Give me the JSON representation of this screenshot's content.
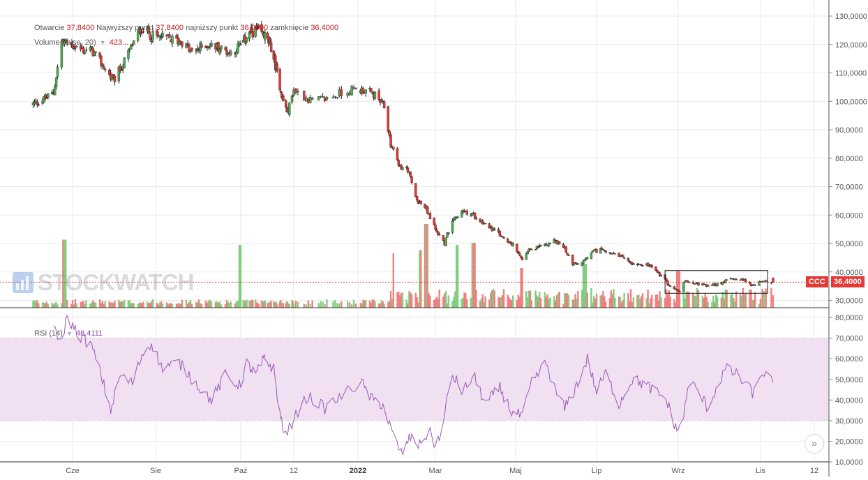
{
  "legend": {
    "ohlc": {
      "open_label": "Otwarcie",
      "open": "37,8400",
      "high_label": "Najwyższy punkt",
      "high": "37,8400",
      "low_label": "najniższy punkt",
      "low": "36,0000",
      "close_label": "zamknięcie",
      "close": "36,4000"
    },
    "volume": {
      "label": "Volume (false, 20)",
      "value": "423..."
    },
    "rsi": {
      "label": "RSI (14)",
      "value": "48,4111"
    }
  },
  "watermark": "STOCKWATCH",
  "price_tag": {
    "ticker": "CCC",
    "price": "36,4000"
  },
  "colors": {
    "up": "#4caf50",
    "down": "#e53935",
    "wick": "#222222",
    "volume_up": "#7fcf7f",
    "volume_down": "#f08080",
    "rsi_line": "#9b59b6",
    "rsi_band": "#f0e0f2",
    "price_line": "#e53935",
    "grid": "#e9e9e9",
    "axis_text": "#555555"
  },
  "chart_data": [
    {
      "type": "candlestick",
      "title": "",
      "x_tick_labels": [
        "Cze",
        "Sie",
        "Paź",
        "12",
        "2022",
        "Mar",
        "Maj",
        "Lip",
        "Wrz",
        "Lis",
        "12"
      ],
      "y_tick_labels": [
        "30,0000",
        "40,0000",
        "50,0000",
        "60,0000",
        "70,0000",
        "80,0000",
        "90,0000",
        "100,0000",
        "110,0000",
        "120,0000",
        "130,0000"
      ],
      "ylim": [
        27,
        134
      ],
      "grid": true,
      "last_price": 36.4,
      "price_line": 36.4,
      "highlight_box": {
        "x_range": [
          "2022-08-22",
          "2022-11-05"
        ],
        "y_range": [
          32.5,
          40.5
        ]
      },
      "close_anchors": [
        [
          "2021-05-03",
          99
        ],
        [
          "2021-05-12",
          101
        ],
        [
          "2021-05-18",
          103
        ],
        [
          "2021-05-24",
          121
        ],
        [
          "2021-05-31",
          120
        ],
        [
          "2021-06-08",
          118
        ],
        [
          "2021-06-15",
          118
        ],
        [
          "2021-06-24",
          112
        ],
        [
          "2021-07-01",
          107
        ],
        [
          "2021-07-08",
          113
        ],
        [
          "2021-07-15",
          120
        ],
        [
          "2021-07-22",
          126
        ],
        [
          "2021-07-29",
          123
        ],
        [
          "2021-08-10",
          122
        ],
        [
          "2021-08-20",
          121
        ],
        [
          "2021-08-27",
          117
        ],
        [
          "2021-09-06",
          120
        ],
        [
          "2021-09-15",
          119
        ],
        [
          "2021-09-24",
          117
        ],
        [
          "2021-10-04",
          121
        ],
        [
          "2021-10-12",
          124
        ],
        [
          "2021-10-20",
          125
        ],
        [
          "2021-10-29",
          123
        ],
        [
          "2021-11-05",
          119
        ],
        [
          "2021-11-12",
          110
        ],
        [
          "2021-11-18",
          101
        ],
        [
          "2021-11-24",
          96
        ],
        [
          "2021-12-01",
          104
        ],
        [
          "2021-12-10",
          100
        ],
        [
          "2021-12-17",
          101
        ],
        [
          "2021-12-28",
          104
        ],
        [
          "2022-01-05",
          104
        ],
        [
          "2022-01-14",
          102
        ],
        [
          "2022-01-21",
          98
        ],
        [
          "2022-01-26",
          85
        ],
        [
          "2022-02-01",
          77
        ],
        [
          "2022-02-08",
          76
        ],
        [
          "2022-02-14",
          66
        ],
        [
          "2022-02-22",
          62
        ],
        [
          "2022-03-01",
          55
        ],
        [
          "2022-03-08",
          50
        ],
        [
          "2022-03-14",
          59
        ],
        [
          "2022-03-22",
          61
        ],
        [
          "2022-03-30",
          60
        ],
        [
          "2022-04-08",
          57
        ],
        [
          "2022-04-19",
          53
        ],
        [
          "2022-04-28",
          50
        ],
        [
          "2022-05-06",
          44
        ],
        [
          "2022-05-12",
          48
        ],
        [
          "2022-05-20",
          49
        ],
        [
          "2022-05-30",
          51
        ],
        [
          "2022-06-06",
          49
        ],
        [
          "2022-06-13",
          43
        ],
        [
          "2022-06-20",
          43
        ],
        [
          "2022-06-28",
          47
        ],
        [
          "2022-07-06",
          48
        ],
        [
          "2022-07-14",
          46
        ],
        [
          "2022-07-21",
          45
        ],
        [
          "2022-07-28",
          43
        ],
        [
          "2022-08-03",
          43
        ],
        [
          "2022-08-11",
          42
        ],
        [
          "2022-08-18",
          39
        ],
        [
          "2022-08-26",
          35
        ],
        [
          "2022-09-01",
          33
        ],
        [
          "2022-09-07",
          37
        ],
        [
          "2022-09-15",
          36
        ],
        [
          "2022-09-22",
          35
        ],
        [
          "2022-10-03",
          36
        ],
        [
          "2022-10-11",
          38
        ],
        [
          "2022-10-20",
          37
        ],
        [
          "2022-10-27",
          35
        ],
        [
          "2022-11-03",
          37
        ],
        [
          "2022-11-08",
          36.4
        ]
      ]
    },
    {
      "type": "bar",
      "title": "",
      "series_name": "Volume (false, 20)",
      "spikes": [
        [
          "2021-05-26",
          0.65
        ],
        [
          "2021-10-01",
          0.6
        ],
        [
          "2022-01-29",
          0.52
        ],
        [
          "2022-02-22",
          0.8
        ],
        [
          "2022-02-18",
          0.55
        ],
        [
          "2022-03-18",
          0.6
        ],
        [
          "2022-03-30",
          0.62
        ],
        [
          "2022-05-06",
          0.38
        ],
        [
          "2022-06-22",
          0.42
        ],
        [
          "2022-09-01",
          0.35
        ]
      ]
    },
    {
      "type": "line",
      "title": "",
      "series_name": "RSI (14)",
      "y_tick_labels": [
        "10,0000",
        "20,0000",
        "30,0000",
        "40,0000",
        "50,0000",
        "60,0000",
        "70,0000",
        "80,0000"
      ],
      "ylim": [
        10,
        82
      ],
      "band": [
        30,
        70
      ],
      "last_value": 48.4111,
      "anchors": [
        [
          "2021-05-18",
          78
        ],
        [
          "2021-05-22",
          64
        ],
        [
          "2021-05-28",
          80
        ],
        [
          "2021-06-05",
          72
        ],
        [
          "2021-06-15",
          66
        ],
        [
          "2021-06-22",
          52
        ],
        [
          "2021-06-29",
          35
        ],
        [
          "2021-07-06",
          52
        ],
        [
          "2021-07-15",
          48
        ],
        [
          "2021-07-22",
          62
        ],
        [
          "2021-07-29",
          68
        ],
        [
          "2021-08-05",
          56
        ],
        [
          "2021-08-18",
          58
        ],
        [
          "2021-08-30",
          48
        ],
        [
          "2021-09-10",
          40
        ],
        [
          "2021-09-20",
          52
        ],
        [
          "2021-09-30",
          47
        ],
        [
          "2021-10-08",
          58
        ],
        [
          "2021-10-18",
          52
        ],
        [
          "2021-10-28",
          60
        ],
        [
          "2021-11-08",
          55
        ],
        [
          "2021-11-15",
          33
        ],
        [
          "2021-11-22",
          22
        ],
        [
          "2021-11-30",
          30
        ],
        [
          "2021-12-08",
          42
        ],
        [
          "2021-12-16",
          36
        ],
        [
          "2021-12-24",
          42
        ],
        [
          "2022-01-03",
          49
        ],
        [
          "2022-01-12",
          40
        ],
        [
          "2022-01-20",
          38
        ],
        [
          "2022-01-27",
          24
        ],
        [
          "2022-02-03",
          14
        ],
        [
          "2022-02-10",
          22
        ],
        [
          "2022-02-17",
          18
        ],
        [
          "2022-02-24",
          25
        ],
        [
          "2022-03-01",
          18
        ],
        [
          "2022-03-07",
          28
        ],
        [
          "2022-03-13",
          53
        ],
        [
          "2022-03-22",
          44
        ],
        [
          "2022-03-30",
          52
        ],
        [
          "2022-04-08",
          38
        ],
        [
          "2022-04-19",
          46
        ],
        [
          "2022-04-28",
          34
        ],
        [
          "2022-05-06",
          32
        ],
        [
          "2022-05-13",
          48
        ],
        [
          "2022-05-24",
          58
        ],
        [
          "2022-05-31",
          44
        ],
        [
          "2022-06-07",
          36
        ],
        [
          "2022-06-16",
          47
        ],
        [
          "2022-06-24",
          60
        ],
        [
          "2022-07-01",
          44
        ],
        [
          "2022-07-08",
          53
        ],
        [
          "2022-07-18",
          38
        ],
        [
          "2022-07-28",
          50
        ],
        [
          "2022-08-05",
          48
        ],
        [
          "2022-08-15",
          44
        ],
        [
          "2022-08-23",
          40
        ],
        [
          "2022-08-31",
          25
        ],
        [
          "2022-09-05",
          32
        ],
        [
          "2022-09-09",
          49
        ],
        [
          "2022-09-16",
          44
        ],
        [
          "2022-09-23",
          36
        ],
        [
          "2022-09-30",
          47
        ],
        [
          "2022-10-06",
          55
        ],
        [
          "2022-10-13",
          53
        ],
        [
          "2022-10-20",
          48
        ],
        [
          "2022-10-27",
          43
        ],
        [
          "2022-11-02",
          54
        ],
        [
          "2022-11-08",
          48.4
        ]
      ]
    }
  ]
}
